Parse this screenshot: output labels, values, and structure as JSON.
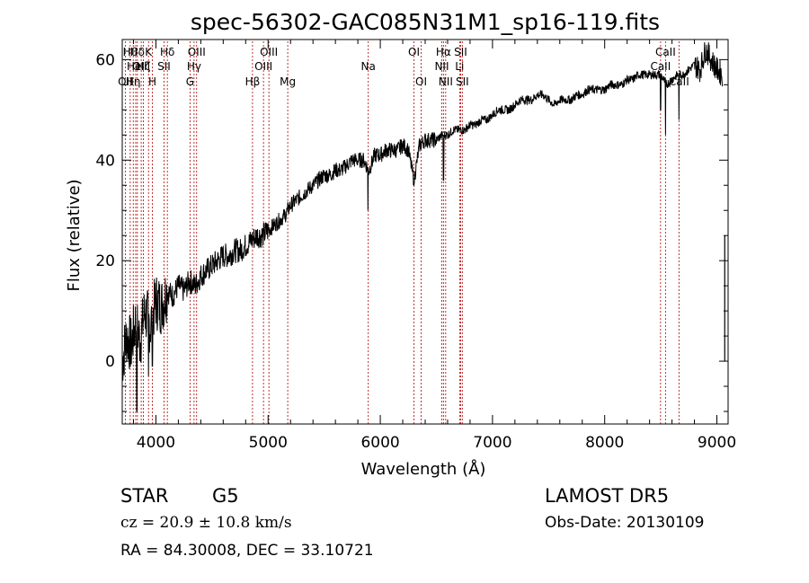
{
  "chart_data": {
    "type": "line",
    "title": "spec-56302-GAC085N31M1_sp16-119.fits",
    "xlabel": "Wavelength (Å)",
    "ylabel": "Flux (relative)",
    "xlim": [
      3700,
      9100
    ],
    "ylim": [
      -12.5,
      64
    ],
    "x_ticks": [
      4000,
      5000,
      6000,
      7000,
      8000,
      9000
    ],
    "y_ticks": [
      0,
      20,
      40,
      60
    ],
    "grid": false,
    "series": [
      {
        "x": [
          3700,
          3740,
          3780,
          3820,
          3860,
          3900,
          3950,
          4000,
          4050,
          4100,
          4150,
          4200,
          4250,
          4300,
          4350,
          4400,
          4450,
          4500,
          4550,
          4600,
          4650,
          4700,
          4750,
          4800,
          4850,
          4900,
          4950,
          5000,
          5050,
          5100,
          5150,
          5200,
          5250,
          5300,
          5350,
          5400,
          5450,
          5500,
          5550,
          5600,
          5650,
          5700,
          5750,
          5800,
          5850,
          5900,
          5950,
          6000,
          6050,
          6100,
          6150,
          6200,
          6250,
          6300,
          6350,
          6400,
          6450,
          6500,
          6550,
          6600,
          6650,
          6700,
          6750,
          6800,
          6850,
          6900,
          6950,
          7000,
          7050,
          7100,
          7150,
          7200,
          7250,
          7300,
          7350,
          7400,
          7450,
          7500,
          7550,
          7600,
          7650,
          7700,
          7750,
          7800,
          7850,
          7900,
          7950,
          8000,
          8050,
          8100,
          8150,
          8200,
          8250,
          8300,
          8350,
          8400,
          8450,
          8500,
          8550,
          8600,
          8650,
          8700,
          8750,
          8800,
          8850,
          8900,
          8950,
          9000,
          9050
        ],
        "y": [
          0,
          5,
          3,
          8,
          4,
          10,
          7,
          12,
          11,
          14,
          13,
          15,
          14,
          16,
          15,
          17,
          18,
          19,
          20,
          21,
          21,
          22,
          22,
          23,
          24,
          25,
          25,
          26,
          27,
          28,
          29,
          31,
          32,
          33,
          34,
          35,
          36,
          37,
          37,
          38,
          38,
          39,
          40,
          40,
          40,
          38,
          41,
          41,
          42,
          42,
          42,
          43,
          42,
          36,
          43,
          44,
          44,
          44,
          45,
          45,
          46,
          46,
          46,
          47,
          47,
          48,
          48,
          49,
          50,
          50,
          50,
          51,
          52,
          52,
          52,
          53,
          53,
          52,
          51,
          52,
          52,
          52,
          53,
          53,
          54,
          54,
          54,
          54,
          55,
          55,
          55,
          56,
          56,
          57,
          57,
          57,
          57,
          57,
          55,
          56,
          57,
          57,
          58,
          59,
          58,
          62,
          60,
          58,
          57
        ],
        "features": [
          {
            "x": 3830,
            "y": -10
          },
          {
            "x": 3934,
            "y": -3
          },
          {
            "x": 3968,
            "y": -1
          },
          {
            "x": 5890,
            "y": 30
          },
          {
            "x": 6300,
            "y": 35
          },
          {
            "x": 6563,
            "y": 36
          },
          {
            "x": 8498,
            "y": 50
          },
          {
            "x": 8542,
            "y": 45
          },
          {
            "x": 8662,
            "y": 48
          }
        ]
      }
    ],
    "lines": [
      {
        "x": 3727,
        "label": "OII",
        "row": 2
      },
      {
        "x": 3771,
        "label": "Hθ",
        "row": 0
      },
      {
        "x": 3798,
        "label": "Hη",
        "row": 2
      },
      {
        "x": 3820,
        "label": "HeI",
        "row": 1
      },
      {
        "x": 3835,
        "label": "Hδ",
        "row": 0
      },
      {
        "x": 3869,
        "label": "OIII",
        "row": 1
      },
      {
        "x": 3889,
        "label": "Hζ",
        "row": 1
      },
      {
        "x": 3934,
        "label": "K",
        "row": 0
      },
      {
        "x": 3969,
        "label": "H",
        "row": 2
      },
      {
        "x": 4072,
        "label": "SII",
        "row": 1
      },
      {
        "x": 4102,
        "label": "Hδ",
        "row": 0
      },
      {
        "x": 4304,
        "label": "G",
        "row": 2
      },
      {
        "x": 4340,
        "label": "Hγ",
        "row": 1
      },
      {
        "x": 4363,
        "label": "OIII",
        "row": 0
      },
      {
        "x": 4861,
        "label": "Hβ",
        "row": 2
      },
      {
        "x": 4959,
        "label": "OIII",
        "row": 1
      },
      {
        "x": 5007,
        "label": "OIII",
        "row": 0
      },
      {
        "x": 5175,
        "label": "Mg",
        "row": 2
      },
      {
        "x": 5893,
        "label": "Na",
        "row": 1
      },
      {
        "x": 6300,
        "label": "OI",
        "row": 0
      },
      {
        "x": 6364,
        "label": "OI",
        "row": 2
      },
      {
        "x": 6548,
        "label": "NII",
        "row": 1
      },
      {
        "x": 6563,
        "label": "Hα",
        "row": 0
      },
      {
        "x": 6583,
        "label": "NII",
        "row": 2
      },
      {
        "x": 6707,
        "label": "Li",
        "row": 1
      },
      {
        "x": 6716,
        "label": "SII",
        "row": 0
      },
      {
        "x": 6731,
        "label": "SII",
        "row": 2
      },
      {
        "x": 8498,
        "label": "CaII",
        "row": 1
      },
      {
        "x": 8542,
        "label": "CaII",
        "row": 0
      },
      {
        "x": 8662,
        "label": "CaII",
        "row": 2
      }
    ],
    "line_color": "#b00000",
    "spectrum_color": "#000000"
  },
  "info": {
    "object_class": "STAR",
    "subclass": "G5",
    "cz": "cz = 20.9 ± 10.8 km/s",
    "coords": "RA =  84.30008, DEC =  33.10721",
    "survey": "LAMOST DR5",
    "obs_date": "Obs-Date: 20130109"
  }
}
